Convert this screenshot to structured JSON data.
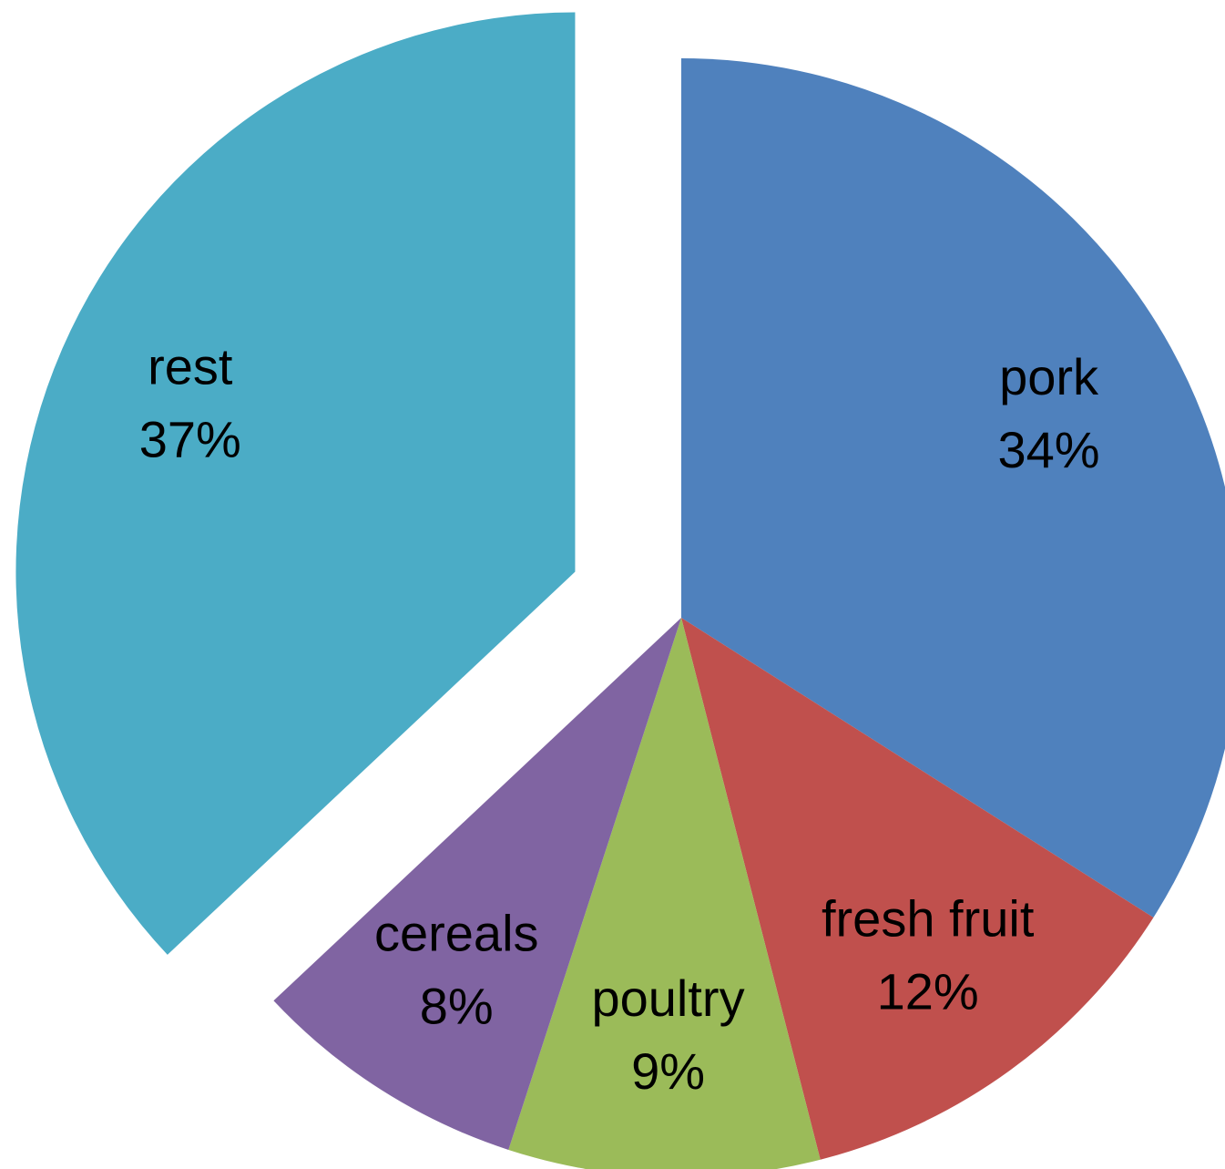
{
  "chart_data": {
    "type": "pie",
    "categories": [
      "pork",
      "fresh fruit",
      "poultry",
      "cereals",
      "rest"
    ],
    "values": [
      34,
      12,
      9,
      8,
      37
    ],
    "value_labels": [
      "34%",
      "12%",
      "9%",
      "8%",
      "37%"
    ],
    "colors": [
      "#4f81bd",
      "#c0504d",
      "#9bbb59",
      "#8064a2",
      "#4bacc6"
    ],
    "exploded": "rest"
  }
}
